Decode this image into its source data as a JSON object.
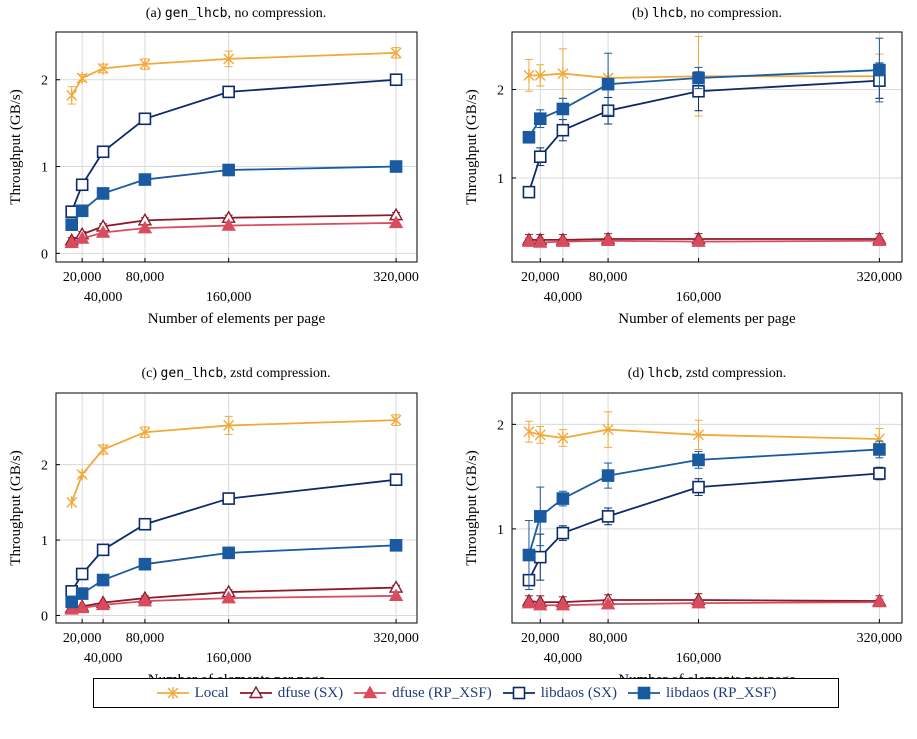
{
  "colors": {
    "local": "#f2a93b",
    "dfuse_sx": "#8b1a2b",
    "dfuse_rp": "#d94c5e",
    "libdaos_sx": "#0d2b6b",
    "libdaos_rp": "#1a5aa0",
    "grid": "#d9d9d9"
  },
  "legend": [
    {
      "key": "local",
      "label": "Local",
      "marker": "star"
    },
    {
      "key": "dfuse_sx",
      "label": "dfuse (SX)",
      "marker": "triangle-open"
    },
    {
      "key": "dfuse_rp",
      "label": "dfuse (RP_XSF)",
      "marker": "triangle-filled"
    },
    {
      "key": "libdaos_sx",
      "label": "libdaos (SX)",
      "marker": "square-open"
    },
    {
      "key": "libdaos_rp",
      "label": "libdaos (RP_XSF)",
      "marker": "square-filled"
    }
  ],
  "chart_data": [
    {
      "type": "line",
      "title_prefix": "(a) ",
      "title_code": "gen_lhcb",
      "title_suffix": ", no compression.",
      "xlabel": "Number of elements per page",
      "ylabel": "Throughput (GB/s)",
      "x": [
        10000,
        20000,
        40000,
        80000,
        160000,
        320000
      ],
      "xticks": [
        20000,
        40000,
        80000,
        160000,
        320000
      ],
      "xticklabels": [
        "20,000",
        "40,000",
        "80,000",
        "160,000",
        "320,000"
      ],
      "xticklabel_row": [
        0,
        1,
        0,
        1,
        0
      ],
      "xlim": [
        -5000,
        340000
      ],
      "ylim": [
        -0.1,
        2.55
      ],
      "yticks": [
        0,
        1,
        2
      ],
      "yticklabels": [
        "0",
        "1",
        "2"
      ],
      "grid": true,
      "series": [
        {
          "key": "local",
          "name": "Local",
          "values": [
            1.82,
            2.02,
            2.13,
            2.18,
            2.24,
            2.31
          ],
          "err": [
            0.1,
            0.04,
            0.05,
            0.06,
            0.09,
            0.06
          ]
        },
        {
          "key": "dfuse_sx",
          "name": "dfuse (SX)",
          "values": [
            0.15,
            0.22,
            0.31,
            0.38,
            0.41,
            0.44
          ],
          "err": [
            0.03,
            0.03,
            0.03,
            0.03,
            0.03,
            0.03
          ]
        },
        {
          "key": "dfuse_rp",
          "name": "dfuse (RP_XSF)",
          "values": [
            0.12,
            0.17,
            0.24,
            0.29,
            0.32,
            0.35
          ],
          "err": [
            0.02,
            0.02,
            0.02,
            0.02,
            0.02,
            0.02
          ]
        },
        {
          "key": "libdaos_sx",
          "name": "libdaos (SX)",
          "values": [
            0.48,
            0.79,
            1.17,
            1.55,
            1.86,
            2.0
          ],
          "err": [
            0.02,
            0.02,
            0.02,
            0.02,
            0.02,
            0.02
          ]
        },
        {
          "key": "libdaos_rp",
          "name": "libdaos (RP_XSF)",
          "values": [
            0.33,
            0.49,
            0.69,
            0.85,
            0.96,
            1.0
          ],
          "err": [
            0.02,
            0.02,
            0.02,
            0.02,
            0.02,
            0.02
          ]
        }
      ]
    },
    {
      "type": "line",
      "title_prefix": "(b) ",
      "title_code": "lhcb",
      "title_suffix": ", no compression.",
      "xlabel": "Number of elements per page",
      "ylabel": "Throughput (GB/s)",
      "x": [
        10000,
        20000,
        40000,
        80000,
        160000,
        320000
      ],
      "xticks": [
        20000,
        40000,
        80000,
        160000,
        320000
      ],
      "xticklabels": [
        "20,000",
        "40,000",
        "80,000",
        "160,000",
        "320,000"
      ],
      "xticklabel_row": [
        0,
        1,
        0,
        1,
        0
      ],
      "xlim": [
        -5000,
        340000
      ],
      "ylim": [
        0.05,
        2.65
      ],
      "yticks": [
        1,
        2
      ],
      "yticklabels": [
        "1",
        "2"
      ],
      "grid": true,
      "series": [
        {
          "key": "local",
          "name": "Local",
          "values": [
            2.16,
            2.16,
            2.18,
            2.13,
            2.15,
            2.15
          ],
          "err": [
            0.18,
            0.12,
            0.28,
            0.02,
            0.45,
            0.25
          ]
        },
        {
          "key": "dfuse_sx",
          "name": "dfuse (SX)",
          "values": [
            0.3,
            0.3,
            0.3,
            0.31,
            0.31,
            0.31
          ],
          "err": [
            0.06,
            0.06,
            0.06,
            0.06,
            0.06,
            0.06
          ]
        },
        {
          "key": "dfuse_rp",
          "name": "dfuse (RP_XSF)",
          "values": [
            0.28,
            0.27,
            0.28,
            0.29,
            0.28,
            0.29
          ],
          "err": [
            0.04,
            0.04,
            0.04,
            0.04,
            0.04,
            0.04
          ]
        },
        {
          "key": "libdaos_sx",
          "name": "libdaos (SX)",
          "values": [
            0.84,
            1.24,
            1.54,
            1.76,
            1.98,
            2.1
          ],
          "err": [
            0.06,
            0.1,
            0.12,
            0.15,
            0.22,
            0.2
          ]
        },
        {
          "key": "libdaos_rp",
          "name": "libdaos (RP_XSF)",
          "values": [
            1.46,
            1.67,
            1.78,
            2.06,
            2.13,
            2.22
          ],
          "err": [
            0.05,
            0.1,
            0.12,
            0.35,
            0.12,
            0.36
          ]
        }
      ]
    },
    {
      "type": "line",
      "title_prefix": "(c) ",
      "title_code": "gen_lhcb",
      "title_suffix": ", zstd compression.",
      "xlabel": "Number of elements per page",
      "ylabel": "Throughput (GB/s)",
      "x": [
        10000,
        20000,
        40000,
        80000,
        160000,
        320000
      ],
      "xticks": [
        20000,
        40000,
        80000,
        160000,
        320000
      ],
      "xticklabels": [
        "20,000",
        "40,000",
        "80,000",
        "160,000",
        "320,000"
      ],
      "xticklabel_row": [
        0,
        1,
        0,
        1,
        0
      ],
      "xlim": [
        -5000,
        340000
      ],
      "ylim": [
        -0.1,
        2.95
      ],
      "yticks": [
        0,
        1,
        2
      ],
      "yticklabels": [
        "0",
        "1",
        "2"
      ],
      "grid": true,
      "series": [
        {
          "key": "local",
          "name": "Local",
          "values": [
            1.5,
            1.87,
            2.2,
            2.43,
            2.52,
            2.59
          ],
          "err": [
            0.02,
            0.03,
            0.06,
            0.07,
            0.12,
            0.07
          ]
        },
        {
          "key": "dfuse_sx",
          "name": "dfuse (SX)",
          "values": [
            0.1,
            0.12,
            0.17,
            0.23,
            0.31,
            0.37
          ],
          "err": [
            0.02,
            0.02,
            0.02,
            0.03,
            0.03,
            0.03
          ]
        },
        {
          "key": "dfuse_rp",
          "name": "dfuse (RP_XSF)",
          "values": [
            0.08,
            0.1,
            0.14,
            0.19,
            0.23,
            0.26
          ],
          "err": [
            0.02,
            0.02,
            0.02,
            0.02,
            0.02,
            0.02
          ]
        },
        {
          "key": "libdaos_sx",
          "name": "libdaos (SX)",
          "values": [
            0.32,
            0.55,
            0.87,
            1.21,
            1.55,
            1.8
          ],
          "err": [
            0.02,
            0.02,
            0.02,
            0.02,
            0.02,
            0.02
          ]
        },
        {
          "key": "libdaos_rp",
          "name": "libdaos (RP_XSF)",
          "values": [
            0.18,
            0.29,
            0.47,
            0.68,
            0.83,
            0.93
          ],
          "err": [
            0.02,
            0.02,
            0.02,
            0.02,
            0.02,
            0.02
          ]
        }
      ]
    },
    {
      "type": "line",
      "title_prefix": "(d) ",
      "title_code": "lhcb",
      "title_suffix": ", zstd compression.",
      "xlabel": "Number of elements per page",
      "ylabel": "Throughput (GB/s)",
      "x": [
        10000,
        20000,
        40000,
        80000,
        160000,
        320000
      ],
      "xticks": [
        20000,
        40000,
        80000,
        160000,
        320000
      ],
      "xticklabels": [
        "20,000",
        "40,000",
        "80,000",
        "160,000",
        "320,000"
      ],
      "xticklabel_row": [
        0,
        1,
        0,
        1,
        0
      ],
      "xlim": [
        -5000,
        340000
      ],
      "ylim": [
        0.1,
        2.3
      ],
      "yticks": [
        1,
        2
      ],
      "yticklabels": [
        "1",
        "2"
      ],
      "grid": true,
      "series": [
        {
          "key": "local",
          "name": "Local",
          "values": [
            1.93,
            1.9,
            1.87,
            1.95,
            1.9,
            1.86
          ],
          "err": [
            0.1,
            0.08,
            0.08,
            0.17,
            0.14,
            0.1
          ]
        },
        {
          "key": "dfuse_sx",
          "name": "dfuse (SX)",
          "values": [
            0.31,
            0.3,
            0.3,
            0.32,
            0.32,
            0.31
          ],
          "err": [
            0.05,
            0.06,
            0.05,
            0.05,
            0.06,
            0.05
          ]
        },
        {
          "key": "dfuse_rp",
          "name": "dfuse (RP_XSF)",
          "values": [
            0.29,
            0.27,
            0.27,
            0.28,
            0.29,
            0.3
          ],
          "err": [
            0.03,
            0.03,
            0.03,
            0.03,
            0.03,
            0.03
          ]
        },
        {
          "key": "libdaos_sx",
          "name": "libdaos (SX)",
          "values": [
            0.51,
            0.73,
            0.96,
            1.12,
            1.4,
            1.53
          ],
          "err": [
            0.05,
            0.22,
            0.07,
            0.08,
            0.08,
            0.06
          ]
        },
        {
          "key": "libdaos_rp",
          "name": "libdaos (RP_XSF)",
          "values": [
            0.75,
            1.12,
            1.29,
            1.51,
            1.66,
            1.76
          ],
          "err": [
            0.33,
            0.28,
            0.07,
            0.12,
            0.08,
            0.08
          ]
        }
      ]
    }
  ]
}
